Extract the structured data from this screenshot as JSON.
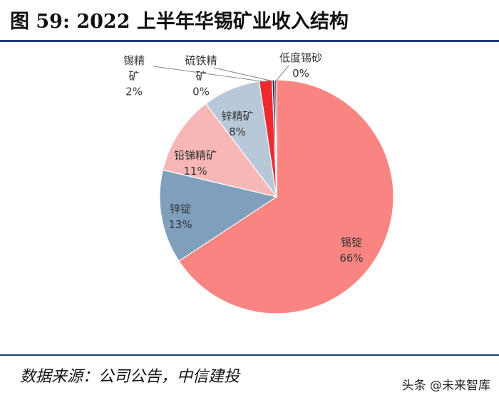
{
  "header": {
    "title": "图 59: 2022 上半年华锡矿业收入结构"
  },
  "footer": {
    "source": "数据来源：公司公告，中信建投",
    "watermark": "头条 @未来智库"
  },
  "chart_data": {
    "type": "pie",
    "title": "图 59: 2022 上半年华锡矿业收入结构",
    "start_angle_deg": 0,
    "direction": "clockwise",
    "slices": [
      {
        "name": "锡锭",
        "label": "锡锭",
        "pct_label": "66%",
        "value": 66.0,
        "color": "#f88582"
      },
      {
        "name": "锌锭",
        "label": "锌锭",
        "pct_label": "13%",
        "value": 13.0,
        "color": "#7f9fbc"
      },
      {
        "name": "铅锑精矿",
        "label": "铅锑精矿",
        "pct_label": "11%",
        "value": 11.0,
        "color": "#f7b7b6"
      },
      {
        "name": "锌精矿",
        "label": "锌精矿",
        "pct_label": "8%",
        "value": 8.0,
        "color": "#b9c8d9"
      },
      {
        "name": "锡精矿",
        "label": "锡精\n矿",
        "pct_label": "2%",
        "value": 1.8,
        "color": "#ee2a2f"
      },
      {
        "name": "硫铁精矿",
        "label": "硫铁精\n矿",
        "pct_label": "0%",
        "value": 0.35,
        "color": "#0f2d57"
      },
      {
        "name": "低度锡砂",
        "label": "低度锡砂",
        "pct_label": "0%",
        "value": 0.25,
        "color": "#8d2a35"
      }
    ]
  }
}
